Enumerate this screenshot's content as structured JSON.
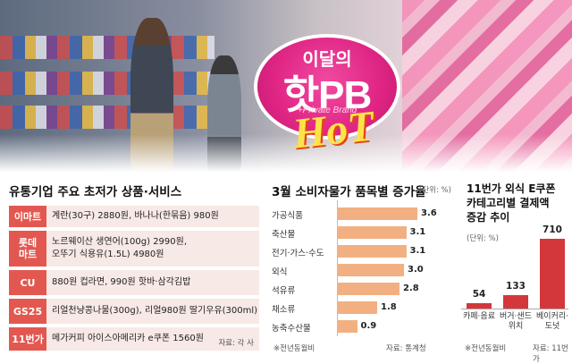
{
  "badge": {
    "top_text": "이달의",
    "main_text": "핫PB",
    "sub_text": "+Private Brand",
    "hot_text": "HoT"
  },
  "left_panel": {
    "title": "유통기업 주요 초저가 상품·서비스",
    "rows": [
      {
        "tag": "이마트",
        "lines": [
          "계란(30구) 2880원, 바나나(한묶음) 980원"
        ]
      },
      {
        "tag": "롯데\n마트",
        "lines": [
          "노르웨이산 생연어(100g) 2990원,",
          "오뚜기 식용유(1.5L) 4980원"
        ]
      },
      {
        "tag": "CU",
        "lines": [
          "880원 컵라면, 990원 핫바·삼각김밥"
        ]
      },
      {
        "tag": "GS25",
        "lines": [
          "리얼천냥콩나물(300g), 리얼980원 딸기우유(300ml)"
        ]
      },
      {
        "tag": "11번가",
        "lines": [
          "메가커피 아이스아메리카 e쿠폰 1560원"
        ]
      }
    ],
    "source": "자료: 각 사"
  },
  "middle_panel": {
    "title": "3월 소비자물가 품목별 증가율",
    "unit": "(단위: %)",
    "note": "※전년동월비",
    "source": "자료: 통계청"
  },
  "right_panel": {
    "title_lines": [
      "11번가 외식 E쿠폰",
      "카테고리별 결제액",
      "증감 추이"
    ],
    "unit": "(단위: %)",
    "note": "※전년동월비",
    "source": "자료: 11번가"
  },
  "chart_data": [
    {
      "type": "bar",
      "orientation": "horizontal",
      "title": "3월 소비자물가 품목별 증가율",
      "unit": "%",
      "categories": [
        "가공식품",
        "축산물",
        "전기·가스·수도",
        "외식",
        "석유류",
        "채소류",
        "농축수산물"
      ],
      "values": [
        3.6,
        3.1,
        3.1,
        3.0,
        2.8,
        1.8,
        0.9
      ],
      "bar_color": "#f2b082",
      "xlim": [
        0,
        4
      ]
    },
    {
      "type": "bar",
      "orientation": "vertical",
      "title": "11번가 외식 E쿠폰 카테고리별 결제액 증감 추이",
      "unit": "%",
      "categories": [
        "카페·음료",
        "버거·샌드위치",
        "베이커리·도넛"
      ],
      "values": [
        54,
        133,
        710
      ],
      "bar_color": "#d4373b",
      "ylim": [
        0,
        750
      ]
    }
  ],
  "colors": {
    "tag_red": "#e25850",
    "row_bg": "#f7e9e6",
    "badge_pink": "#e02584",
    "hot_yellow": "#ffe24a"
  }
}
